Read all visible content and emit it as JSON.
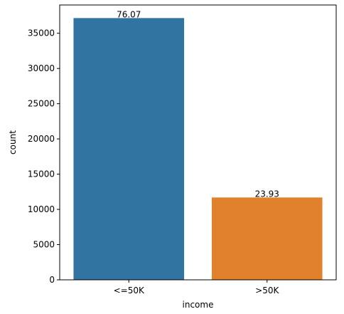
{
  "chart_data": {
    "type": "bar",
    "categories": [
      "<=50K",
      ">50K"
    ],
    "values": [
      37155,
      11687
    ],
    "data_labels": [
      "76.07",
      "23.93"
    ],
    "colors": [
      "#3274a1",
      "#e1812c"
    ],
    "xlabel": "income",
    "ylabel": "count",
    "ylim": [
      0,
      39012
    ],
    "yticks": [
      0,
      5000,
      10000,
      15000,
      20000,
      25000,
      30000,
      35000
    ],
    "grid": false,
    "legend": "none"
  }
}
